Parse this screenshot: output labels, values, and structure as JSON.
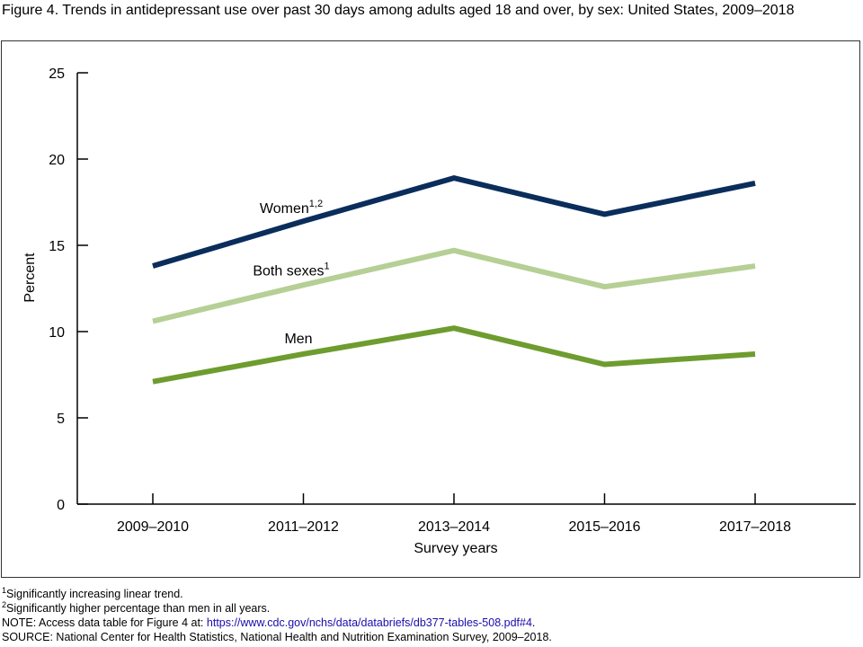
{
  "title": "Figure 4. Trends in antidepressant use over past 30 days among adults aged 18 and over, by sex: United States, 2009–2018",
  "chart_data": {
    "type": "line",
    "xlabel": "Survey years",
    "ylabel": "Percent",
    "categories": [
      "2009–2010",
      "2011–2012",
      "2013–2014",
      "2015–2016",
      "2017–2018"
    ],
    "ylim": [
      0,
      25
    ],
    "yticks": [
      "0",
      "5",
      "10",
      "15",
      "20",
      "25"
    ],
    "grid": false,
    "series": [
      {
        "name": "Women",
        "sup": "1,2",
        "color": "#0a2d5c",
        "values": [
          13.8,
          16.4,
          18.9,
          16.8,
          18.6
        ]
      },
      {
        "name": "Both sexes",
        "sup": "1",
        "color": "#b5cf95",
        "values": [
          10.6,
          12.7,
          14.7,
          12.6,
          13.8
        ]
      },
      {
        "name": "Men",
        "sup": "",
        "color": "#6e9c2f",
        "values": [
          7.1,
          8.7,
          10.2,
          8.1,
          8.7
        ]
      }
    ]
  },
  "footnotes": [
    {
      "sup": "1",
      "text": "Significantly increasing linear trend."
    },
    {
      "sup": "2",
      "text": "Significantly higher percentage than men in all years."
    }
  ],
  "note": {
    "prefix": "NOTE: Access data table for Figure 4 at: ",
    "link": "https://www.cdc.gov/nchs/data/databriefs/db377-tables-508.pdf#4",
    "suffix": "."
  },
  "source": "SOURCE: National Center for Health Statistics, National Health and Nutrition Examination Survey, 2009–2018."
}
